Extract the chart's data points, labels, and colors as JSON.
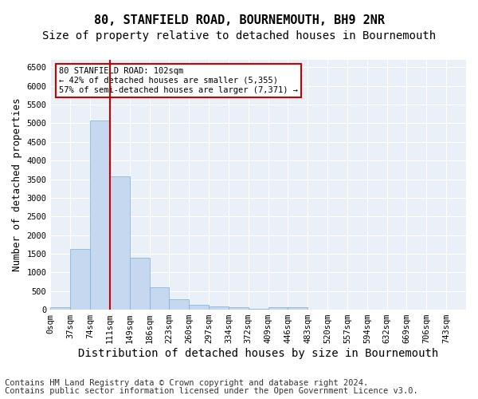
{
  "title": "80, STANFIELD ROAD, BOURNEMOUTH, BH9 2NR",
  "subtitle": "Size of property relative to detached houses in Bournemouth",
  "xlabel": "Distribution of detached houses by size in Bournemouth",
  "ylabel": "Number of detached properties",
  "bin_labels": [
    "0sqm",
    "37sqm",
    "74sqm",
    "111sqm",
    "149sqm",
    "186sqm",
    "223sqm",
    "260sqm",
    "297sqm",
    "334sqm",
    "372sqm",
    "409sqm",
    "446sqm",
    "483sqm",
    "520sqm",
    "557sqm",
    "594sqm",
    "632sqm",
    "669sqm",
    "706sqm",
    "743sqm"
  ],
  "bar_values": [
    75,
    1625,
    5075,
    3575,
    1400,
    610,
    280,
    130,
    80,
    60,
    25,
    60,
    60,
    0,
    0,
    0,
    0,
    0,
    0,
    0,
    0
  ],
  "bar_color": "#c5d8f0",
  "bar_edge_color": "#7bafd4",
  "vline_color": "#cc0000",
  "ylim": [
    0,
    6700
  ],
  "yticks": [
    0,
    500,
    1000,
    1500,
    2000,
    2500,
    3000,
    3500,
    4000,
    4500,
    5000,
    5500,
    6000,
    6500
  ],
  "annotation_text": "80 STANFIELD ROAD: 102sqm\n← 42% of detached houses are smaller (5,355)\n57% of semi-detached houses are larger (7,371) →",
  "annotation_box_color": "#ffffff",
  "annotation_border_color": "#cc0000",
  "footer1": "Contains HM Land Registry data © Crown copyright and database right 2024.",
  "footer2": "Contains public sector information licensed under the Open Government Licence v3.0.",
  "plot_bg_color": "#eaf0f8",
  "title_fontsize": 11,
  "subtitle_fontsize": 10,
  "xlabel_fontsize": 10,
  "ylabel_fontsize": 9,
  "footer_fontsize": 7.5,
  "tick_fontsize": 7.5
}
